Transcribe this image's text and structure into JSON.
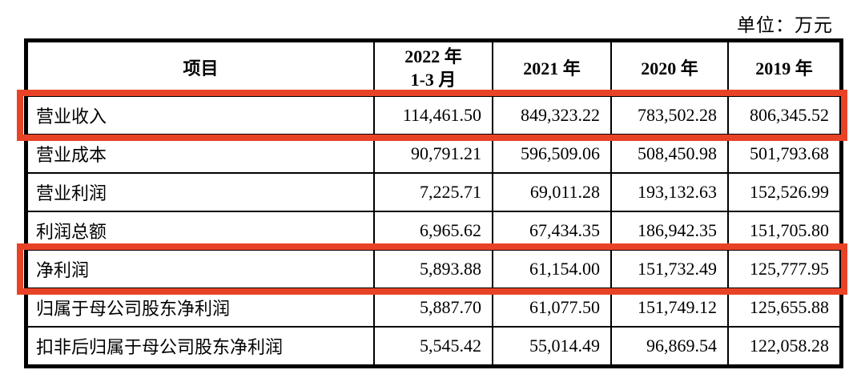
{
  "unit_label": "单位：万元",
  "highlight_color": "#e84326",
  "table": {
    "columns": [
      {
        "line1": "项目"
      },
      {
        "line1": "2022 年",
        "line2": "1-3 月"
      },
      {
        "line1": "2021 年"
      },
      {
        "line1": "2020 年"
      },
      {
        "line1": "2019 年"
      }
    ],
    "rows": [
      {
        "label": "营业收入",
        "values": [
          "114,461.50",
          "849,323.22",
          "783,502.28",
          "806,345.52"
        ],
        "highlight": true
      },
      {
        "label": "营业成本",
        "values": [
          "90,791.21",
          "596,509.06",
          "508,450.98",
          "501,793.68"
        ],
        "highlight": false
      },
      {
        "label": "营业利润",
        "values": [
          "7,225.71",
          "69,011.28",
          "193,132.63",
          "152,526.99"
        ],
        "highlight": false
      },
      {
        "label": "利润总额",
        "values": [
          "6,965.62",
          "67,434.35",
          "186,942.35",
          "151,705.80"
        ],
        "highlight": false
      },
      {
        "label": "净利润",
        "values": [
          "5,893.88",
          "61,154.00",
          "151,732.49",
          "125,777.95"
        ],
        "highlight": true
      },
      {
        "label": "归属于母公司股东净利润",
        "values": [
          "5,887.70",
          "61,077.50",
          "151,749.12",
          "125,655.88"
        ],
        "highlight": false
      },
      {
        "label": "扣非后归属于母公司股东净利润",
        "values": [
          "5,545.42",
          "55,014.49",
          "96,869.54",
          "122,058.28"
        ],
        "highlight": false
      }
    ]
  }
}
